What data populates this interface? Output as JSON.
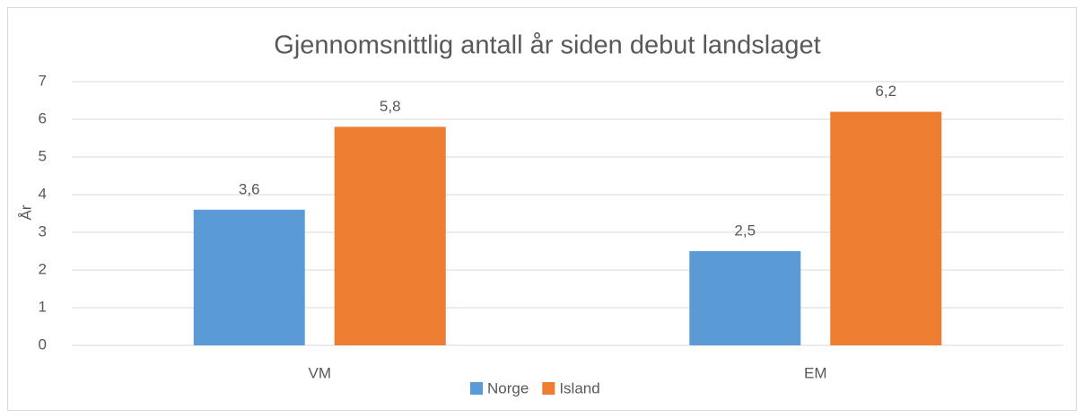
{
  "chart_data": {
    "type": "bar",
    "title": "Gjennomsnittlig antall år siden debut landslaget",
    "ylabel": "År",
    "categories": [
      "VM",
      "EM"
    ],
    "series": [
      {
        "name": "Norge",
        "color": "#5b9bd5",
        "values": [
          3.6,
          2.5
        ],
        "value_labels": [
          "3,6",
          "2,5"
        ]
      },
      {
        "name": "Island",
        "color": "#ed7d31",
        "values": [
          5.8,
          6.2
        ],
        "value_labels": [
          "5,8",
          "6,2"
        ]
      }
    ],
    "ylim": [
      0,
      7
    ],
    "yticks": [
      0,
      1,
      2,
      3,
      4,
      5,
      6,
      7
    ],
    "grid": true,
    "legend": "bottom"
  }
}
